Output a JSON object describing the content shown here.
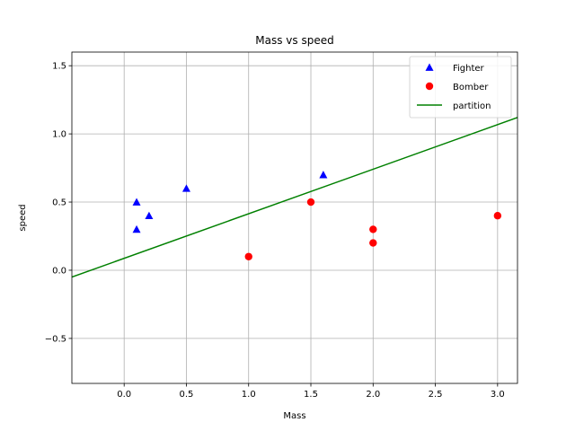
{
  "chart_data": {
    "type": "scatter",
    "title": "Mass vs speed",
    "xlabel": "Mass",
    "ylabel": "speed",
    "xlim": [
      -0.42,
      3.16
    ],
    "ylim": [
      -0.83,
      1.6
    ],
    "xticks": [
      0.0,
      0.5,
      1.0,
      1.5,
      2.0,
      2.5,
      3.0
    ],
    "xtick_labels": [
      "0.0",
      "0.5",
      "1.0",
      "1.5",
      "2.0",
      "2.5",
      "3.0"
    ],
    "yticks": [
      -0.5,
      0.0,
      0.5,
      1.0,
      1.5
    ],
    "ytick_labels": [
      "−0.5",
      "0.0",
      "0.5",
      "1.0",
      "1.5"
    ],
    "grid": true,
    "legend_position": "top-right",
    "series": [
      {
        "name": "Fighter",
        "marker": "triangle",
        "color": "#0000ff",
        "points": [
          [
            0.1,
            0.3
          ],
          [
            0.1,
            0.5
          ],
          [
            0.2,
            0.4
          ],
          [
            0.5,
            0.6
          ],
          [
            1.6,
            0.7
          ]
        ]
      },
      {
        "name": "Bomber",
        "marker": "circle",
        "color": "#ff0000",
        "points": [
          [
            1.0,
            0.1
          ],
          [
            1.5,
            0.5
          ],
          [
            2.0,
            0.3
          ],
          [
            2.0,
            0.2
          ],
          [
            3.0,
            0.4
          ]
        ]
      }
    ],
    "line": {
      "name": "partition",
      "color": "#008000",
      "points": [
        [
          -0.42,
          -0.05
        ],
        [
          3.16,
          1.12
        ]
      ]
    }
  }
}
